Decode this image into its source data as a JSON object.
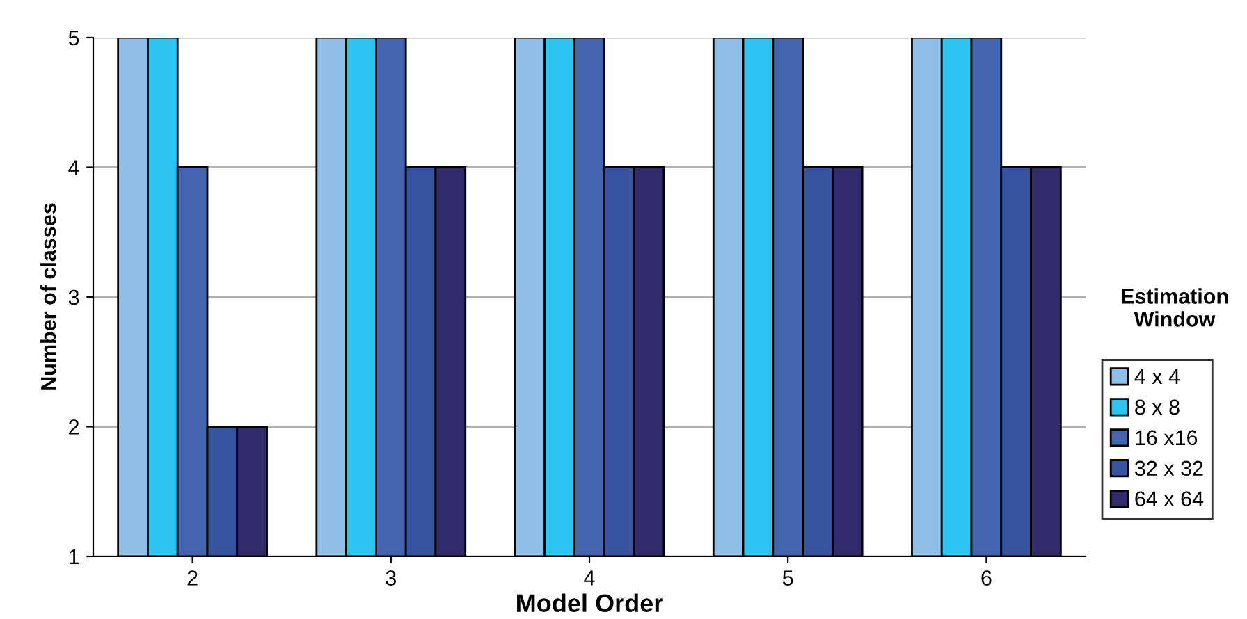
{
  "chart_data": {
    "type": "bar",
    "xlabel": "Model Order",
    "ylabel": "Number of classes",
    "legend_title": "Estimation\nWindow",
    "categories": [
      "2",
      "3",
      "4",
      "5",
      "6"
    ],
    "series": [
      {
        "name": "4 x 4",
        "color": "#8fbfe6",
        "values": [
          5,
          5,
          5,
          5,
          5
        ]
      },
      {
        "name": "8 x 8",
        "color": "#2ec4f2",
        "values": [
          5,
          5,
          5,
          5,
          5
        ]
      },
      {
        "name": "16 x16",
        "color": "#4466b0",
        "values": [
          4,
          5,
          5,
          5,
          5
        ]
      },
      {
        "name": "32 x 32",
        "color": "#3853a0",
        "values": [
          2,
          4,
          4,
          4,
          4
        ]
      },
      {
        "name": "64 x 64",
        "color": "#312b6c",
        "values": [
          2,
          4,
          4,
          4,
          4
        ]
      }
    ],
    "ylim": [
      1,
      5
    ],
    "yticks": [
      1,
      2,
      3,
      4,
      5
    ],
    "grid": "y",
    "legend": "right"
  }
}
